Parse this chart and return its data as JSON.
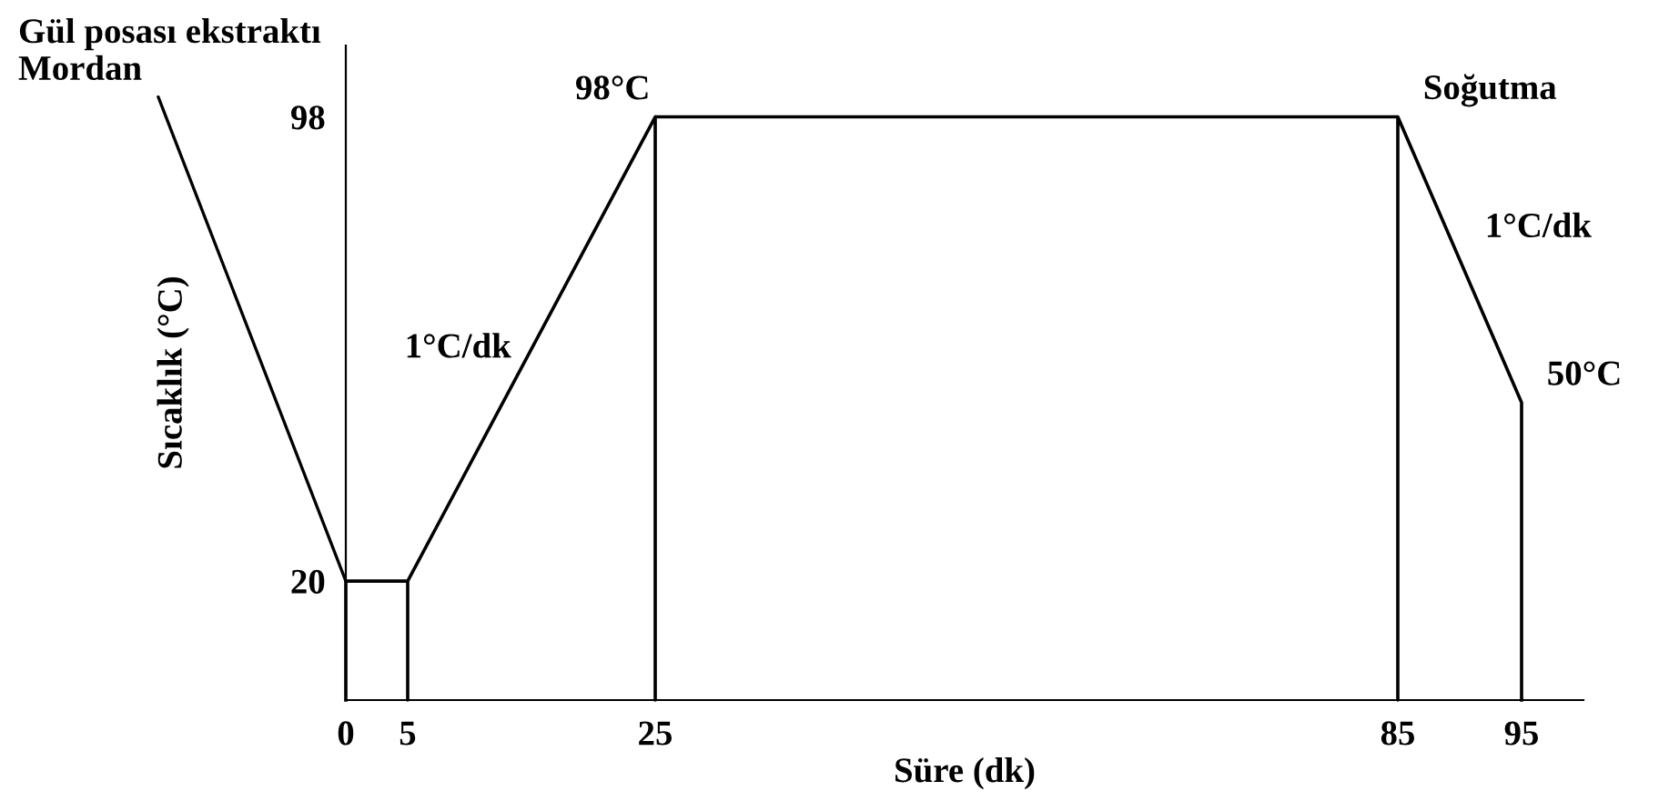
{
  "chart_data": {
    "type": "line",
    "xlabel": "Süre (dk)",
    "ylabel": "Sıcaklık (°C)",
    "xlim": [
      0,
      100
    ],
    "ylim": [
      0,
      110
    ],
    "xticks": [
      0,
      5,
      25,
      85,
      95
    ],
    "yticks": [
      20,
      98
    ],
    "series": [
      {
        "color": "#000000",
        "x": [
          0,
          0,
          5,
          5,
          5,
          25,
          25,
          25,
          85,
          85,
          85,
          95,
          95
        ],
        "values": [
          0,
          20,
          20,
          0,
          20,
          98,
          0,
          98,
          98,
          0,
          98,
          50,
          0
        ]
      }
    ],
    "annotations": [
      {
        "text": "Gül posası ekstraktı\nMordan",
        "x": 0,
        "y": 20
      },
      {
        "text": "98°C",
        "x": 25,
        "y": 98
      },
      {
        "text": "1°C/dk",
        "x": 15,
        "y": 59
      },
      {
        "text": "Soğutma",
        "x": 85,
        "y": 98
      },
      {
        "text": "1°C/dk",
        "x": 90,
        "y": 74
      },
      {
        "text": "50°C",
        "x": 95,
        "y": 50
      }
    ],
    "grid": false,
    "marker": "none",
    "line_style": "solid"
  }
}
